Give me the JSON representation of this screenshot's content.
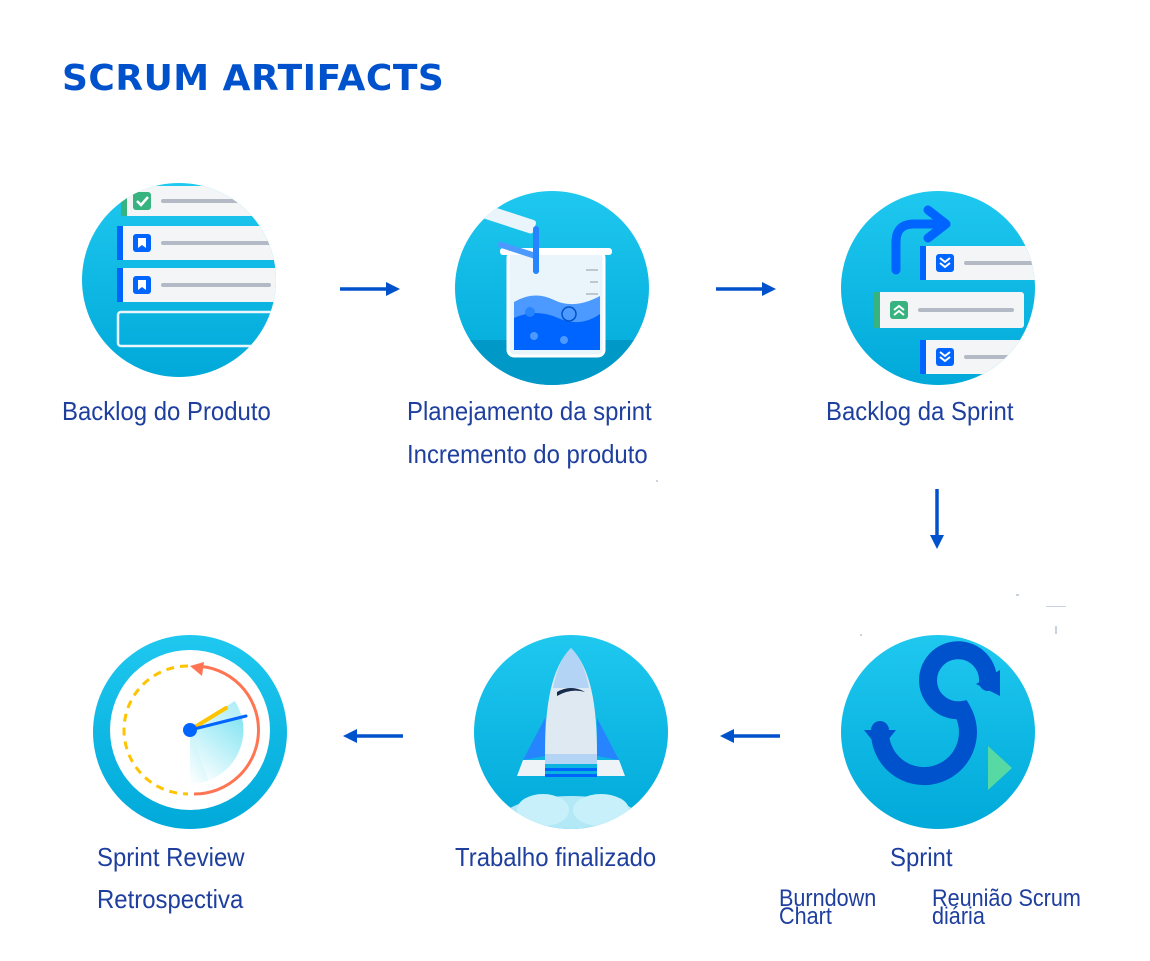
{
  "title": "SCRUM ARTIFACTS",
  "nodes": {
    "backlog_produto": {
      "label": "Backlog do Produto"
    },
    "planejamento": {
      "label1": "Planejamento da sprint",
      "label2": "Incremento do produto"
    },
    "backlog_sprint": {
      "label": "Backlog da Sprint"
    },
    "sprint": {
      "label": "Sprint",
      "burndown_line1": "Burndown",
      "burndown_line2": "Chart",
      "reuniao_line1": "Reunião Scrum",
      "reuniao_line2": "diária"
    },
    "trabalho": {
      "label": "Trabalho finalizado"
    },
    "review": {
      "label1": "Sprint  Review",
      "label2": "Retrospectiva"
    }
  },
  "icons": {
    "backlog_produto": "checklist-icon",
    "planejamento": "beaker-icon",
    "backlog_sprint": "prioritized-list-icon",
    "sprint": "sprint-loop-icon",
    "trabalho": "rocket-icon",
    "review": "stopwatch-icon"
  },
  "colors": {
    "title": "#0052cc",
    "label": "#1e3f9e",
    "circle": "#00b8e6",
    "arrow": "#0052cc"
  }
}
